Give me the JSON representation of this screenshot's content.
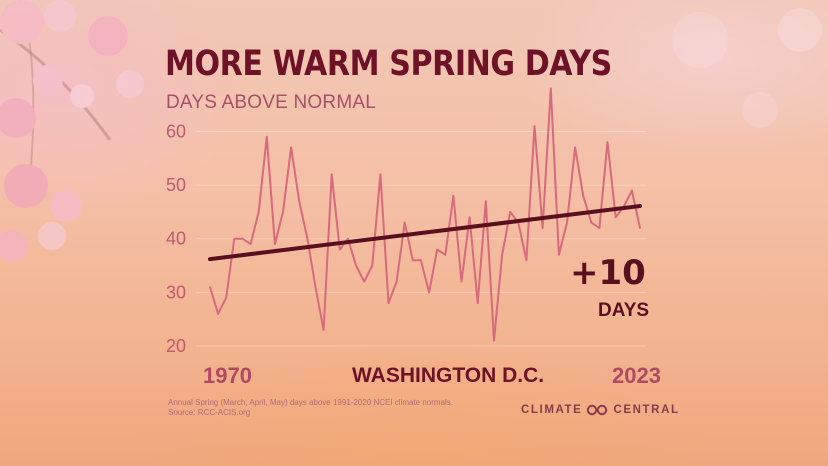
{
  "header": {
    "title": "MORE WARM SPRING DAYS",
    "subtitle": "DAYS ABOVE NORMAL"
  },
  "colors": {
    "data_line": "#d9697c",
    "trend_line": "#5a0f20",
    "title": "#6e1228",
    "axis_text": "#c05a70"
  },
  "chart_data": {
    "type": "line",
    "title": "MORE WARM SPRING DAYS",
    "subtitle": "DAYS ABOVE NORMAL",
    "xlabel": "",
    "ylabel": "",
    "location_label": "WASHINGTON D.C.",
    "xlim": [
      1970,
      2023
    ],
    "ylim": [
      20,
      64
    ],
    "x_tick_labels": [
      "1970",
      "2023"
    ],
    "y_ticks": [
      20,
      30,
      40,
      50,
      60
    ],
    "grid": "horizontal",
    "series": [
      {
        "x": [
          1970,
          1971,
          1972,
          1973,
          1974,
          1975,
          1976,
          1977,
          1978,
          1979,
          1980,
          1981,
          1982,
          1983,
          1984,
          1985,
          1986,
          1987,
          1988,
          1989,
          1990,
          1991,
          1992,
          1993,
          1994,
          1995,
          1996,
          1997,
          1998,
          1999,
          2000,
          2001,
          2002,
          2003,
          2004,
          2005,
          2006,
          2007,
          2008,
          2009,
          2010,
          2011,
          2012,
          2013,
          2014,
          2015,
          2016,
          2017,
          2018,
          2019,
          2020,
          2021,
          2022,
          2023
        ],
        "values": [
          31,
          26,
          29,
          40,
          40,
          39,
          45,
          59,
          39,
          45,
          57,
          47,
          40,
          31,
          23,
          52,
          38,
          40,
          35,
          32,
          35,
          52,
          28,
          32,
          43,
          36,
          36,
          30,
          38,
          37,
          48,
          32,
          44,
          28,
          47,
          21,
          37,
          45,
          43,
          36,
          61,
          42,
          68,
          37,
          43,
          57,
          48,
          43,
          42,
          58,
          44,
          46,
          49,
          42
        ]
      },
      {
        "name": "trend",
        "x": [
          1970,
          2023
        ],
        "values": [
          36.2,
          46.1
        ]
      }
    ],
    "annotations": [
      {
        "text": "+10",
        "subtext": "DAYS"
      }
    ]
  },
  "footer": {
    "note_line1": "Annual Spring (March, April, May) days above 1991-2020 NCEI climate normals.",
    "note_line2": "Source: RCC-ACIS.org",
    "brand_left": "CLIMATE",
    "brand_right": "CENTRAL"
  }
}
